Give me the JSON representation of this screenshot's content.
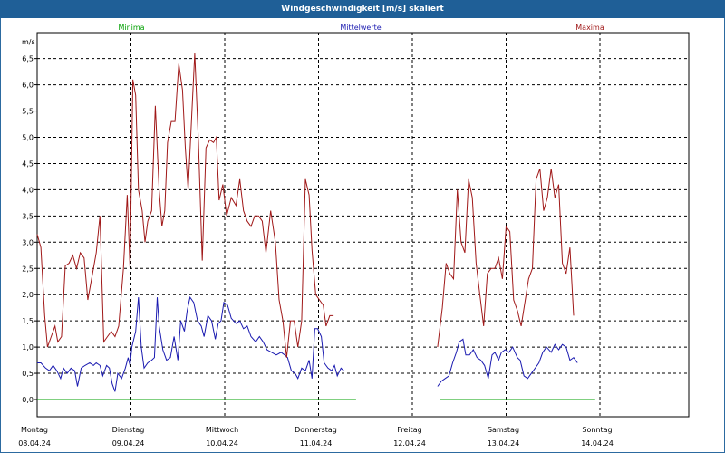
{
  "window": {
    "title": "Windgeschwindigkeit [m/s] skaliert"
  },
  "chart_data": {
    "type": "line",
    "title": "Windgeschwindigkeit [m/s] skaliert",
    "ylabel": "m/s",
    "ylim": [
      0,
      6.8
    ],
    "yticks": [
      "0,0",
      "0,5",
      "1,0",
      "1,5",
      "2,0",
      "2,5",
      "3,0",
      "3,5",
      "4,0",
      "4,5",
      "5,0",
      "5,5",
      "6,0",
      "6,5"
    ],
    "xlim": [
      0,
      7
    ],
    "xticks": [
      {
        "day": "Montag",
        "date": "08.04.24",
        "x": 0
      },
      {
        "day": "Dienstag",
        "date": "09.04.24",
        "x": 1
      },
      {
        "day": "Mittwoch",
        "date": "10.04.24",
        "x": 2
      },
      {
        "day": "Donnerstag",
        "date": "11.04.24",
        "x": 3
      },
      {
        "day": "Freitag",
        "date": "12.04.24",
        "x": 4
      },
      {
        "day": "Samstag",
        "date": "13.04.24",
        "x": 5
      },
      {
        "day": "Sonntag",
        "date": "14.04.24",
        "x": 6
      }
    ],
    "grid": true,
    "colors": {
      "minima": "#00a000",
      "mittelwerte": "#1a1ab0",
      "maxima": "#a01818",
      "grid": "#000000"
    },
    "series": [
      {
        "name": "Minima",
        "segments": [
          [
            [
              0,
              0.0
            ],
            [
              3.4,
              0.0
            ]
          ],
          [
            [
              4.3,
              0.0
            ],
            [
              5.95,
              0.0
            ]
          ]
        ]
      },
      {
        "name": "Mittelwerte",
        "segments": [
          [
            [
              0.0,
              0.7
            ],
            [
              0.04,
              0.7
            ],
            [
              0.09,
              0.6
            ],
            [
              0.13,
              0.55
            ],
            [
              0.17,
              0.65
            ],
            [
              0.21,
              0.55
            ],
            [
              0.25,
              0.4
            ],
            [
              0.28,
              0.6
            ],
            [
              0.32,
              0.5
            ],
            [
              0.36,
              0.6
            ],
            [
              0.4,
              0.55
            ],
            [
              0.43,
              0.25
            ],
            [
              0.47,
              0.6
            ],
            [
              0.51,
              0.65
            ],
            [
              0.56,
              0.7
            ],
            [
              0.6,
              0.65
            ],
            [
              0.63,
              0.7
            ],
            [
              0.67,
              0.65
            ],
            [
              0.7,
              0.45
            ],
            [
              0.74,
              0.65
            ],
            [
              0.77,
              0.6
            ],
            [
              0.8,
              0.3
            ],
            [
              0.83,
              0.15
            ],
            [
              0.86,
              0.5
            ],
            [
              0.9,
              0.4
            ],
            [
              0.94,
              0.6
            ],
            [
              0.97,
              0.8
            ],
            [
              0.99,
              0.65
            ],
            [
              1.01,
              1.0
            ],
            [
              1.05,
              1.3
            ],
            [
              1.08,
              1.95
            ],
            [
              1.11,
              1.0
            ],
            [
              1.14,
              0.6
            ],
            [
              1.18,
              0.7
            ],
            [
              1.22,
              0.75
            ],
            [
              1.25,
              0.8
            ],
            [
              1.28,
              1.95
            ],
            [
              1.3,
              1.4
            ],
            [
              1.34,
              0.95
            ],
            [
              1.38,
              0.75
            ],
            [
              1.42,
              0.8
            ],
            [
              1.46,
              1.2
            ],
            [
              1.5,
              0.75
            ],
            [
              1.53,
              1.5
            ],
            [
              1.57,
              1.3
            ],
            [
              1.6,
              1.7
            ],
            [
              1.63,
              1.95
            ],
            [
              1.67,
              1.85
            ],
            [
              1.71,
              1.5
            ],
            [
              1.75,
              1.4
            ],
            [
              1.78,
              1.2
            ],
            [
              1.82,
              1.6
            ],
            [
              1.86,
              1.5
            ],
            [
              1.9,
              1.15
            ],
            [
              1.93,
              1.45
            ],
            [
              1.96,
              1.5
            ],
            [
              1.99,
              1.85
            ],
            [
              2.03,
              1.8
            ],
            [
              2.07,
              1.55
            ],
            [
              2.12,
              1.45
            ],
            [
              2.16,
              1.5
            ],
            [
              2.2,
              1.35
            ],
            [
              2.24,
              1.4
            ],
            [
              2.28,
              1.2
            ],
            [
              2.33,
              1.1
            ],
            [
              2.37,
              1.2
            ],
            [
              2.41,
              1.1
            ],
            [
              2.45,
              0.95
            ],
            [
              2.5,
              0.9
            ],
            [
              2.55,
              0.85
            ],
            [
              2.6,
              0.9
            ],
            [
              2.64,
              0.85
            ],
            [
              2.67,
              0.8
            ],
            [
              2.71,
              0.55
            ],
            [
              2.75,
              0.5
            ],
            [
              2.78,
              0.4
            ],
            [
              2.82,
              0.6
            ],
            [
              2.86,
              0.55
            ],
            [
              2.9,
              0.75
            ],
            [
              2.93,
              0.4
            ],
            [
              2.96,
              1.35
            ],
            [
              2.99,
              1.35
            ],
            [
              3.03,
              1.2
            ],
            [
              3.06,
              0.7
            ],
            [
              3.1,
              0.6
            ],
            [
              3.14,
              0.55
            ],
            [
              3.17,
              0.65
            ],
            [
              3.2,
              0.45
            ],
            [
              3.24,
              0.6
            ],
            [
              3.27,
              0.55
            ]
          ],
          [
            [
              4.27,
              0.25
            ],
            [
              4.31,
              0.35
            ],
            [
              4.35,
              0.4
            ],
            [
              4.39,
              0.45
            ],
            [
              4.43,
              0.7
            ],
            [
              4.47,
              0.9
            ],
            [
              4.5,
              1.1
            ],
            [
              4.54,
              1.15
            ],
            [
              4.57,
              0.85
            ],
            [
              4.61,
              0.85
            ],
            [
              4.65,
              0.95
            ],
            [
              4.69,
              0.8
            ],
            [
              4.73,
              0.75
            ],
            [
              4.77,
              0.65
            ],
            [
              4.81,
              0.4
            ],
            [
              4.85,
              0.85
            ],
            [
              4.88,
              0.9
            ],
            [
              4.92,
              0.75
            ],
            [
              4.95,
              0.9
            ],
            [
              4.99,
              0.95
            ],
            [
              5.03,
              0.9
            ],
            [
              5.07,
              1.0
            ],
            [
              5.12,
              0.8
            ],
            [
              5.15,
              0.75
            ],
            [
              5.19,
              0.45
            ],
            [
              5.23,
              0.4
            ],
            [
              5.27,
              0.5
            ],
            [
              5.31,
              0.6
            ],
            [
              5.35,
              0.7
            ],
            [
              5.39,
              0.9
            ],
            [
              5.43,
              1.0
            ],
            [
              5.48,
              0.9
            ],
            [
              5.52,
              1.05
            ],
            [
              5.56,
              0.95
            ],
            [
              5.6,
              1.05
            ],
            [
              5.64,
              1.0
            ],
            [
              5.68,
              0.75
            ],
            [
              5.72,
              0.8
            ],
            [
              5.76,
              0.7
            ]
          ]
        ]
      },
      {
        "name": "Maxima",
        "segments": [
          [
            [
              0.0,
              3.15
            ],
            [
              0.04,
              2.9
            ],
            [
              0.08,
              1.6
            ],
            [
              0.11,
              1.0
            ],
            [
              0.15,
              1.2
            ],
            [
              0.19,
              1.4
            ],
            [
              0.22,
              1.1
            ],
            [
              0.26,
              1.2
            ],
            [
              0.3,
              2.55
            ],
            [
              0.34,
              2.6
            ],
            [
              0.38,
              2.75
            ],
            [
              0.42,
              2.5
            ],
            [
              0.46,
              2.8
            ],
            [
              0.5,
              2.7
            ],
            [
              0.54,
              1.9
            ],
            [
              0.59,
              2.4
            ],
            [
              0.63,
              2.8
            ],
            [
              0.67,
              3.5
            ],
            [
              0.71,
              1.1
            ],
            [
              0.75,
              1.2
            ],
            [
              0.79,
              1.3
            ],
            [
              0.83,
              1.2
            ],
            [
              0.87,
              1.4
            ],
            [
              0.92,
              2.5
            ],
            [
              0.96,
              3.9
            ],
            [
              0.99,
              2.5
            ],
            [
              1.02,
              6.1
            ],
            [
              1.05,
              5.8
            ],
            [
              1.08,
              4.0
            ],
            [
              1.12,
              3.6
            ],
            [
              1.15,
              3.0
            ],
            [
              1.18,
              3.4
            ],
            [
              1.22,
              3.6
            ],
            [
              1.26,
              5.6
            ],
            [
              1.3,
              4.0
            ],
            [
              1.33,
              3.3
            ],
            [
              1.36,
              3.6
            ],
            [
              1.39,
              4.9
            ],
            [
              1.43,
              5.3
            ],
            [
              1.47,
              5.3
            ],
            [
              1.51,
              6.4
            ],
            [
              1.55,
              5.9
            ],
            [
              1.58,
              4.8
            ],
            [
              1.61,
              4.0
            ],
            [
              1.64,
              5.1
            ],
            [
              1.68,
              6.6
            ],
            [
              1.72,
              4.9
            ],
            [
              1.76,
              2.65
            ],
            [
              1.8,
              4.8
            ],
            [
              1.84,
              4.95
            ],
            [
              1.88,
              4.9
            ],
            [
              1.91,
              5.0
            ],
            [
              1.94,
              3.8
            ],
            [
              1.98,
              4.1
            ],
            [
              2.02,
              3.5
            ],
            [
              2.07,
              3.85
            ],
            [
              2.12,
              3.7
            ],
            [
              2.16,
              4.2
            ],
            [
              2.2,
              3.6
            ],
            [
              2.24,
              3.4
            ],
            [
              2.28,
              3.3
            ],
            [
              2.32,
              3.5
            ],
            [
              2.36,
              3.5
            ],
            [
              2.4,
              3.4
            ],
            [
              2.44,
              2.8
            ],
            [
              2.49,
              3.6
            ],
            [
              2.54,
              3.0
            ],
            [
              2.58,
              1.9
            ],
            [
              2.62,
              1.5
            ],
            [
              2.66,
              0.8
            ],
            [
              2.7,
              1.5
            ],
            [
              2.74,
              1.5
            ],
            [
              2.78,
              1.0
            ],
            [
              2.82,
              1.5
            ],
            [
              2.86,
              4.2
            ],
            [
              2.9,
              3.9
            ],
            [
              2.93,
              2.85
            ],
            [
              2.97,
              2.0
            ],
            [
              3.01,
              1.9
            ],
            [
              3.05,
              1.8
            ],
            [
              3.08,
              1.4
            ],
            [
              3.12,
              1.6
            ],
            [
              3.16,
              1.6
            ]
          ],
          [
            [
              4.27,
              1.0
            ],
            [
              4.32,
              1.75
            ],
            [
              4.36,
              2.6
            ],
            [
              4.4,
              2.4
            ],
            [
              4.44,
              2.3
            ],
            [
              4.48,
              4.0
            ],
            [
              4.52,
              3.0
            ],
            [
              4.56,
              2.8
            ],
            [
              4.6,
              4.2
            ],
            [
              4.64,
              3.85
            ],
            [
              4.68,
              2.6
            ],
            [
              4.72,
              2.0
            ],
            [
              4.76,
              1.4
            ],
            [
              4.8,
              2.4
            ],
            [
              4.84,
              2.5
            ],
            [
              4.88,
              2.5
            ],
            [
              4.92,
              2.7
            ],
            [
              4.96,
              2.3
            ],
            [
              5.0,
              3.3
            ],
            [
              5.04,
              3.2
            ],
            [
              5.08,
              1.9
            ],
            [
              5.12,
              1.7
            ],
            [
              5.16,
              1.4
            ],
            [
              5.2,
              1.85
            ],
            [
              5.24,
              2.3
            ],
            [
              5.28,
              2.5
            ],
            [
              5.32,
              4.2
            ],
            [
              5.36,
              4.4
            ],
            [
              5.4,
              3.6
            ],
            [
              5.44,
              3.85
            ],
            [
              5.48,
              4.4
            ],
            [
              5.52,
              3.85
            ],
            [
              5.56,
              4.1
            ],
            [
              5.6,
              2.6
            ],
            [
              5.64,
              2.4
            ],
            [
              5.68,
              2.9
            ],
            [
              5.72,
              1.6
            ]
          ]
        ]
      }
    ],
    "legend": [
      {
        "label": "Minima",
        "color": "#00a000"
      },
      {
        "label": "Mittelwerte",
        "color": "#1a1ab0"
      },
      {
        "label": "Maxima",
        "color": "#a01818"
      }
    ]
  }
}
